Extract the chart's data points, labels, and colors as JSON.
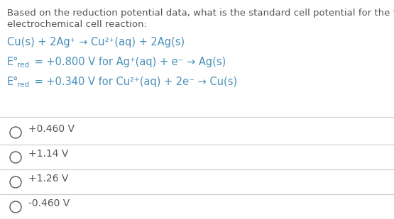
{
  "background_color": "#ffffff",
  "text_color": "#555555",
  "blue_color": "#4a90b8",
  "line_color": "#d0d0d0",
  "question_line1": "Based on the reduction potential data, what is the standard cell potential for the following",
  "question_line2": "electrochemical cell reaction:",
  "reaction": "Cu(s) + 2Ag⁺ → Cu²⁺(aq) + 2Ag(s)",
  "ered1_main": "E°",
  "ered1_sub": "red",
  "ered1_rest": " = +0.800 V for Ag⁺(aq) + e⁻ → Ag(s)",
  "ered2_main": "E°",
  "ered2_sub": "red",
  "ered2_rest": " = +0.340 V for Cu²⁺(aq) + 2e⁻ → Cu(s)",
  "choices": [
    "+0.460 V",
    "+1.14 V",
    "+1.26 V",
    "-0.460 V"
  ],
  "font_size_q": 9.5,
  "font_size_body": 10.5,
  "font_size_sub": 7.5,
  "font_size_choices": 10.0,
  "figsize": [
    5.55,
    3.09
  ],
  "dpi": 100
}
